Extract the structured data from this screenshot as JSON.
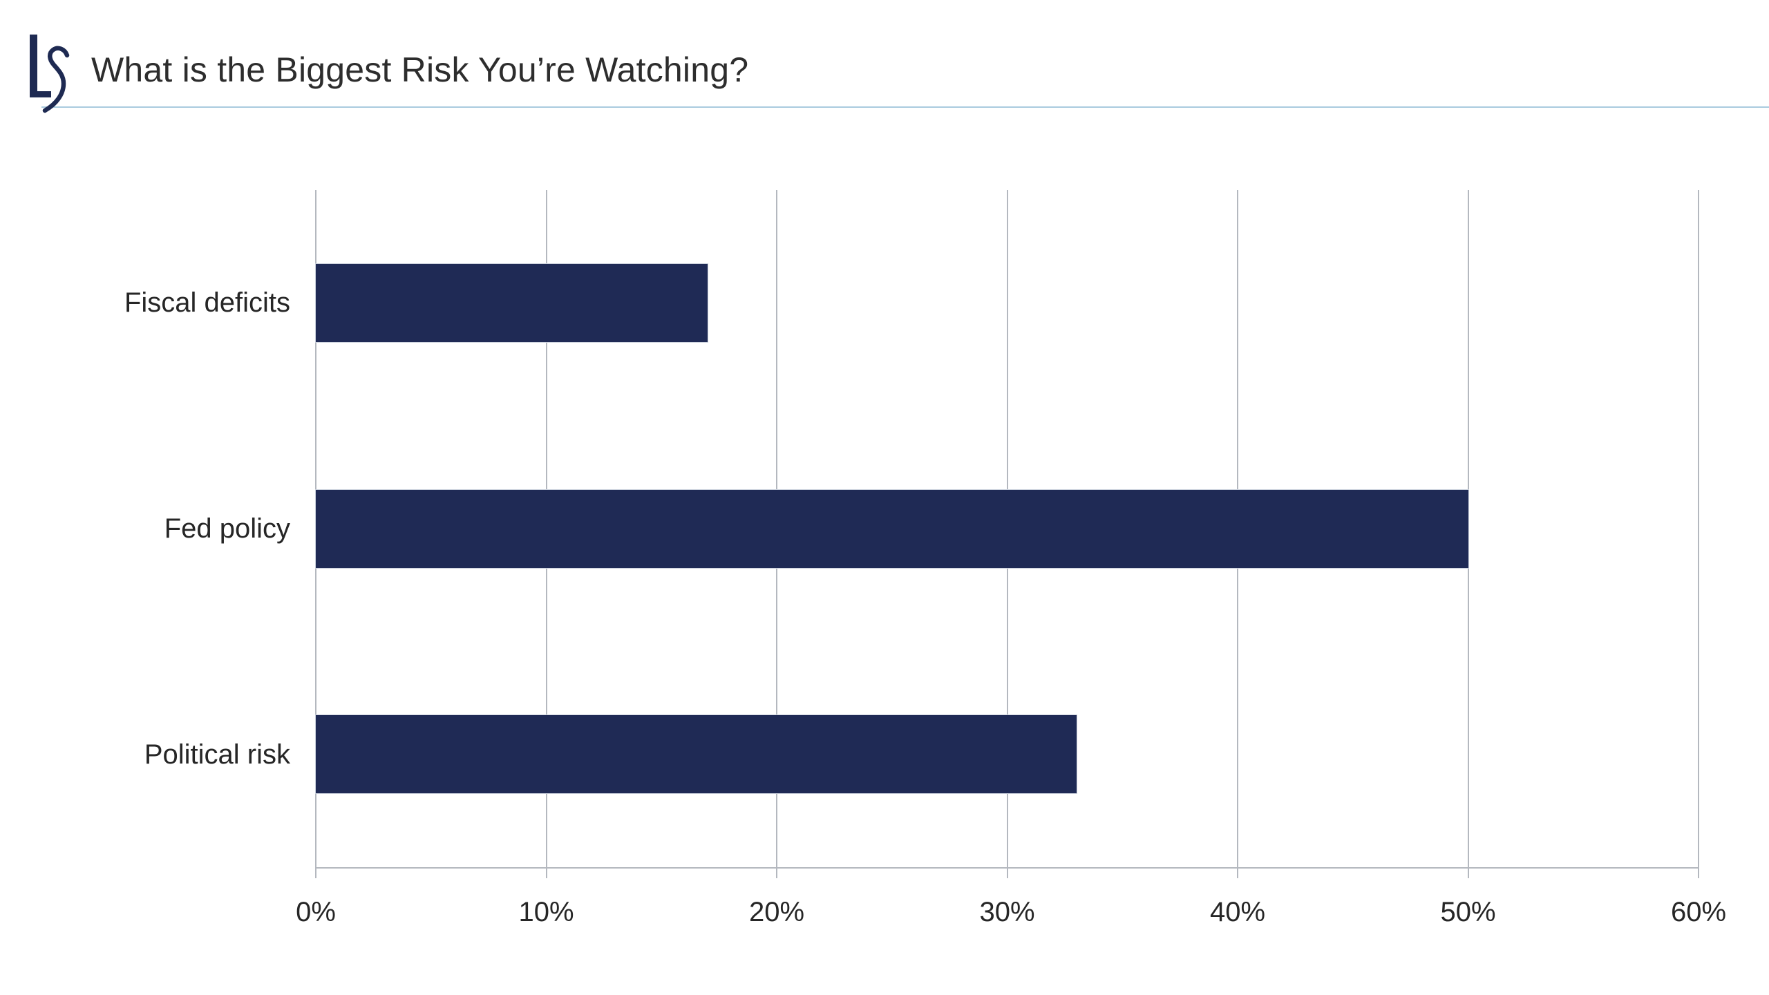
{
  "header": {
    "logo_text": "LS",
    "title": "What is the Biggest Risk You’re Watching?"
  },
  "colors": {
    "bar": "#1f2a55",
    "logo": "#1e2a52",
    "grid": "#b4b8bf",
    "divider": "#a9cbdf",
    "title_text": "#2d2d2d",
    "label_text": "#262626"
  },
  "chart_data": {
    "type": "bar",
    "orientation": "horizontal",
    "title": "What is the Biggest Risk You’re Watching?",
    "categories": [
      "Fiscal deficits",
      "Fed policy",
      "Political risk"
    ],
    "values": [
      17,
      50,
      33
    ],
    "unit": "%",
    "xlabel": "",
    "ylabel": "",
    "xlim": [
      0,
      60
    ],
    "xticks": [
      0,
      10,
      20,
      30,
      40,
      50,
      60
    ],
    "xtick_labels": [
      "0%",
      "10%",
      "20%",
      "30%",
      "40%",
      "50%",
      "60%"
    ],
    "grid": "vertical-only",
    "legend": "none",
    "data_labels": "none"
  }
}
